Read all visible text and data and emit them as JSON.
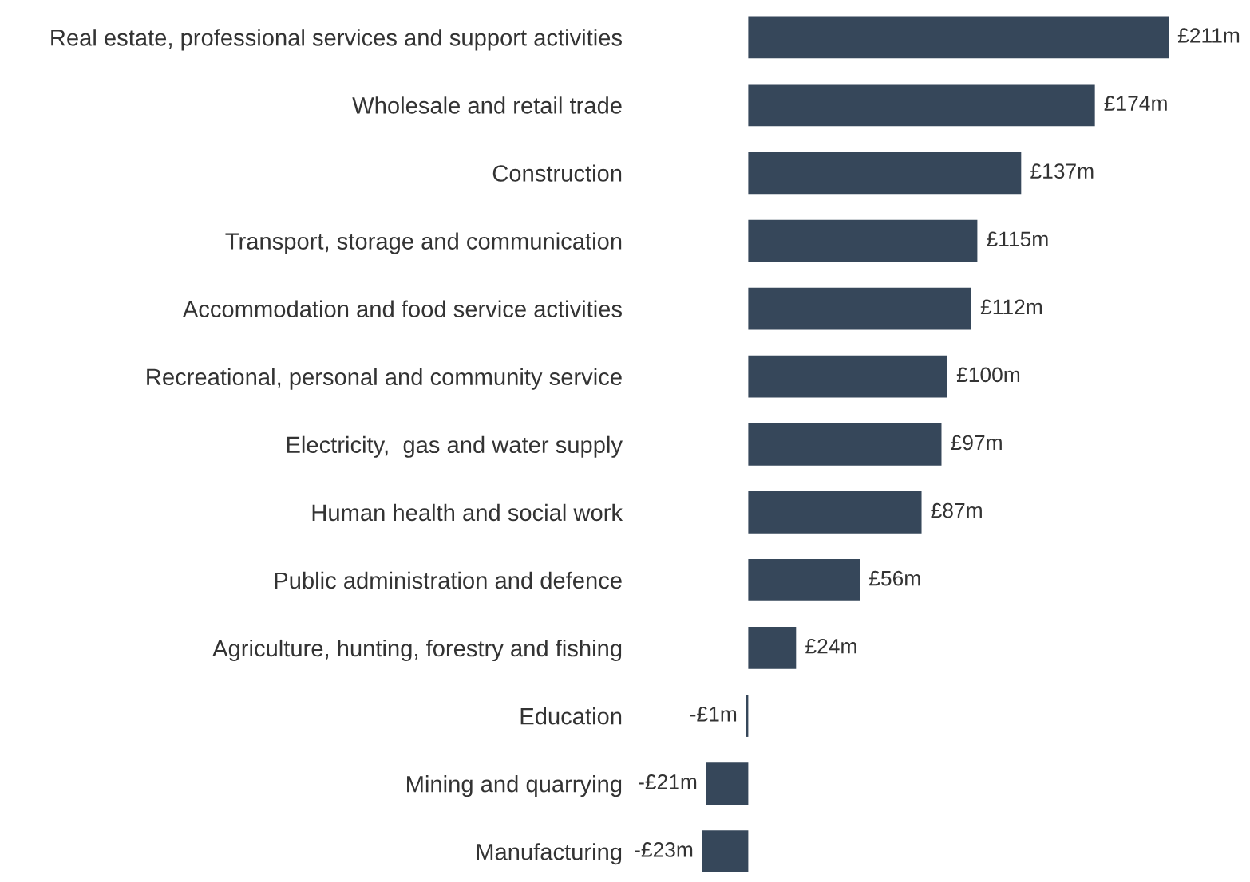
{
  "chart_data": {
    "type": "bar",
    "orientation": "horizontal",
    "categories": [
      "Real estate, professional services and support activities",
      "Wholesale and retail trade",
      "Construction",
      "Transport, storage and communication",
      "Accommodation and food service activities",
      "Recreational, personal and community service",
      "Electricity,  gas and water supply",
      "Human health and social work",
      "Public administration and defence",
      "Agriculture, hunting, forestry and fishing",
      "Education",
      "Mining and quarrying",
      "Manufacturing"
    ],
    "values": [
      211,
      174,
      137,
      115,
      112,
      100,
      97,
      87,
      56,
      24,
      -1,
      -21,
      -23
    ],
    "value_labels": [
      "£211m",
      "£174m",
      "£137m",
      "£115m",
      "£112m",
      "£100m",
      "£97m",
      "£87m",
      "£56m",
      "£24m",
      "-£1m",
      "-£21m",
      "-£23m"
    ],
    "color": "#36475a",
    "grid": false,
    "legend": false
  }
}
